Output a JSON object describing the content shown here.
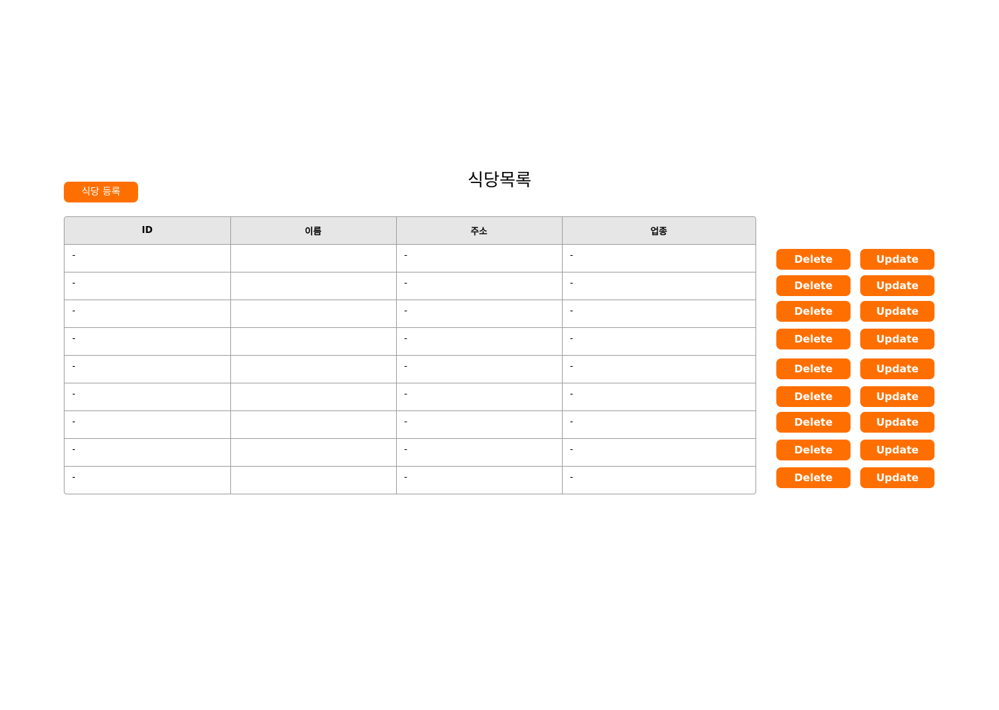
{
  "page": {
    "title": "식당목록",
    "register_button": "식당 등록"
  },
  "table": {
    "headers": [
      "ID",
      "이름",
      "주소",
      "업종"
    ],
    "rows": [
      [
        "-",
        "",
        "-",
        "-"
      ],
      [
        "-",
        "",
        "-",
        "-"
      ],
      [
        "-",
        "",
        "-",
        "-"
      ],
      [
        "-",
        "",
        "-",
        "-"
      ],
      [
        "-",
        "",
        "-",
        "-"
      ],
      [
        "-",
        "",
        "-",
        "-"
      ],
      [
        "-",
        "",
        "-",
        "-"
      ],
      [
        "-",
        "",
        "-",
        "-"
      ],
      [
        "-",
        "",
        "-",
        "-"
      ]
    ]
  },
  "actions": {
    "delete_label": "Delete",
    "update_label": "Update"
  },
  "colors": {
    "accent": "#ff6f00",
    "header_bg": "#e6e6e6",
    "border": "#9e9e9e"
  }
}
